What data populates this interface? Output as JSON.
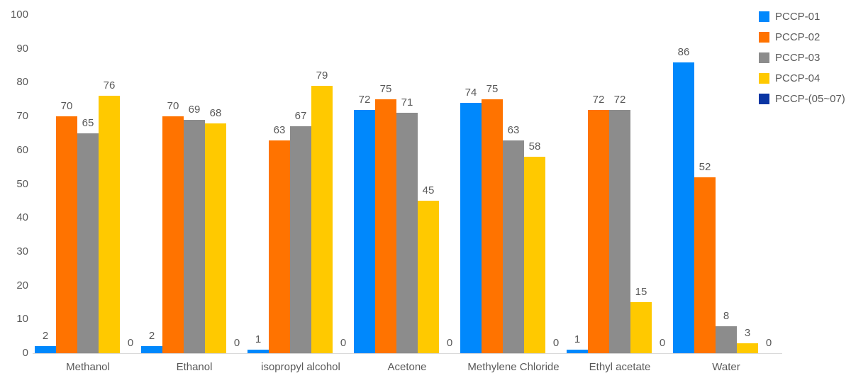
{
  "chart_data": {
    "type": "bar",
    "title": "",
    "xlabel": "",
    "ylabel": "",
    "categories": [
      "Methanol",
      "Ethanol",
      "isopropyl alcohol",
      "Acetone",
      "Methylene Chloride",
      "Ethyl acetate",
      "Water"
    ],
    "series": [
      {
        "name": "PCCP-01",
        "color": "#0088FC",
        "values": [
          2,
          2,
          1,
          72,
          74,
          1,
          86
        ]
      },
      {
        "name": "PCCP-02",
        "color": "#FF7300",
        "values": [
          70,
          70,
          63,
          75,
          75,
          72,
          52
        ]
      },
      {
        "name": "PCCP-03",
        "color": "#8C8C8C",
        "values": [
          65,
          69,
          67,
          71,
          63,
          72,
          8
        ]
      },
      {
        "name": "PCCP-04",
        "color": "#FFC900",
        "values": [
          76,
          68,
          79,
          45,
          58,
          15,
          3
        ]
      },
      {
        "name": "PCCP-(05~07)",
        "color": "#0A35A3",
        "values": [
          0,
          0,
          0,
          0,
          0,
          0,
          0
        ]
      }
    ],
    "ylim": [
      0,
      100
    ],
    "yticks": [
      0,
      10,
      20,
      30,
      40,
      50,
      60,
      70,
      80,
      90,
      100
    ],
    "grid": false,
    "legend_position": "top-right",
    "value_labels": true
  },
  "styles": {
    "text_color": "#595959",
    "axis_line_color": "#d9d9d9",
    "background": "#ffffff"
  }
}
